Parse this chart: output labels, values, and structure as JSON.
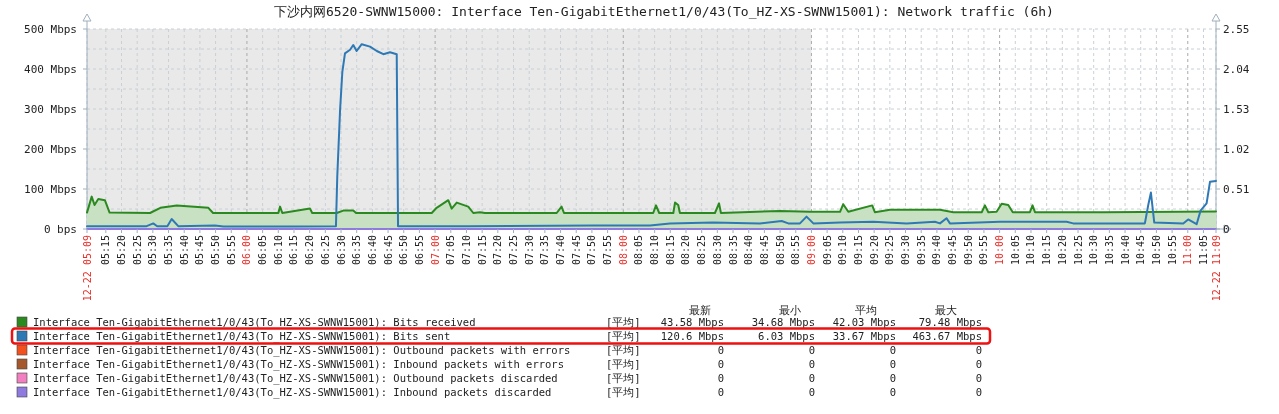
{
  "chart_data": {
    "type": "line",
    "title": "下沙内网6520-SWNW15000: Interface Ten-GigabitEthernet1/0/43(To_HZ-XS-SWNW15001): Network traffic (6h)",
    "xlim": [
      5.15,
      11.15
    ],
    "ylim": [
      0,
      500
    ],
    "y2lim": [
      0,
      2.55
    ],
    "yticks": [
      {
        "value": 0,
        "label": "0 bps"
      },
      {
        "value": 50,
        "label": null
      },
      {
        "value": 100,
        "label": "100 Mbps"
      },
      {
        "value": 150,
        "label": null
      },
      {
        "value": 200,
        "label": "200 Mbps"
      },
      {
        "value": 250,
        "label": null
      },
      {
        "value": 300,
        "label": "300 Mbps"
      },
      {
        "value": 350,
        "label": null
      },
      {
        "value": 400,
        "label": "400 Mbps"
      },
      {
        "value": 450,
        "label": null
      },
      {
        "value": 500,
        "label": "500 Mbps"
      }
    ],
    "y2ticks": [
      0,
      0.51,
      1.02,
      1.53,
      2.04,
      2.55
    ],
    "xticks": [
      {
        "value": 5.15,
        "label": "12-22 05:09"
      },
      {
        "value": 5.25,
        "label": "05:15"
      },
      {
        "value": 5.3333,
        "label": "05:20"
      },
      {
        "value": 5.4167,
        "label": "05:25"
      },
      {
        "value": 5.5,
        "label": "05:30"
      },
      {
        "value": 5.5833,
        "label": "05:35"
      },
      {
        "value": 5.6667,
        "label": "05:40"
      },
      {
        "value": 5.75,
        "label": "05:45"
      },
      {
        "value": 5.8333,
        "label": "05:50"
      },
      {
        "value": 5.9167,
        "label": "05:55"
      },
      {
        "value": 6,
        "label": "06:00"
      },
      {
        "value": 6.0833,
        "label": "06:05"
      },
      {
        "value": 6.1667,
        "label": "06:10"
      },
      {
        "value": 6.25,
        "label": "06:15"
      },
      {
        "value": 6.3333,
        "label": "06:20"
      },
      {
        "value": 6.4167,
        "label": "06:25"
      },
      {
        "value": 6.5,
        "label": "06:30"
      },
      {
        "value": 6.5833,
        "label": "06:35"
      },
      {
        "value": 6.6667,
        "label": "06:40"
      },
      {
        "value": 6.75,
        "label": "06:45"
      },
      {
        "value": 6.8333,
        "label": "06:50"
      },
      {
        "value": 6.9167,
        "label": "06:55"
      },
      {
        "value": 7,
        "label": "07:00"
      },
      {
        "value": 7.0833,
        "label": "07:05"
      },
      {
        "value": 7.1667,
        "label": "07:10"
      },
      {
        "value": 7.25,
        "label": "07:15"
      },
      {
        "value": 7.3333,
        "label": "07:20"
      },
      {
        "value": 7.4167,
        "label": "07:25"
      },
      {
        "value": 7.5,
        "label": "07:30"
      },
      {
        "value": 7.5833,
        "label": "07:35"
      },
      {
        "value": 7.6667,
        "label": "07:40"
      },
      {
        "value": 7.75,
        "label": "07:45"
      },
      {
        "value": 7.8333,
        "label": "07:50"
      },
      {
        "value": 7.9167,
        "label": "07:55"
      },
      {
        "value": 8,
        "label": "08:00"
      },
      {
        "value": 8.0833,
        "label": "08:05"
      },
      {
        "value": 8.1667,
        "label": "08:10"
      },
      {
        "value": 8.25,
        "label": "08:15"
      },
      {
        "value": 8.3333,
        "label": "08:20"
      },
      {
        "value": 8.4167,
        "label": "08:25"
      },
      {
        "value": 8.5,
        "label": "08:30"
      },
      {
        "value": 8.5833,
        "label": "08:35"
      },
      {
        "value": 8.6667,
        "label": "08:40"
      },
      {
        "value": 8.75,
        "label": "08:45"
      },
      {
        "value": 8.8333,
        "label": "08:50"
      },
      {
        "value": 8.9167,
        "label": "08:55"
      },
      {
        "value": 9,
        "label": "09:00"
      },
      {
        "value": 9.0833,
        "label": "09:05"
      },
      {
        "value": 9.1667,
        "label": "09:10"
      },
      {
        "value": 9.25,
        "label": "09:15"
      },
      {
        "value": 9.3333,
        "label": "09:20"
      },
      {
        "value": 9.4167,
        "label": "09:25"
      },
      {
        "value": 9.5,
        "label": "09:30"
      },
      {
        "value": 9.5833,
        "label": "09:35"
      },
      {
        "value": 9.6667,
        "label": "09:40"
      },
      {
        "value": 9.75,
        "label": "09:45"
      },
      {
        "value": 9.8333,
        "label": "09:50"
      },
      {
        "value": 9.9167,
        "label": "09:55"
      },
      {
        "value": 10,
        "label": "10:00"
      },
      {
        "value": 10.0833,
        "label": "10:05"
      },
      {
        "value": 10.1667,
        "label": "10:10"
      },
      {
        "value": 10.25,
        "label": "10:15"
      },
      {
        "value": 10.3333,
        "label": "10:20"
      },
      {
        "value": 10.4167,
        "label": "10:25"
      },
      {
        "value": 10.5,
        "label": "10:30"
      },
      {
        "value": 10.5833,
        "label": "10:35"
      },
      {
        "value": 10.6667,
        "label": "10:40"
      },
      {
        "value": 10.75,
        "label": "10:45"
      },
      {
        "value": 10.8333,
        "label": "10:50"
      },
      {
        "value": 10.9167,
        "label": "10:55"
      },
      {
        "value": 11,
        "label": "11:00"
      },
      {
        "value": 11.0833,
        "label": "11:05"
      },
      {
        "value": 11.15,
        "label": "12-22 11:09"
      }
    ],
    "grid": true,
    "legend": "bottom",
    "bands": [
      {
        "axis": "x",
        "from": 5.15,
        "to": 9,
        "color": "#e9e9e9"
      }
    ],
    "series": [
      {
        "name": "Interface Ten-GigabitEthernet1/0/43(To_HZ-XS-SWNW15001): Bits received",
        "type": "area",
        "color": "#2b8a1f",
        "x": [
          5.15,
          5.175,
          5.19,
          5.21,
          5.245,
          5.27,
          5.485,
          5.54,
          5.627,
          5.795,
          5.82,
          6.167,
          6.176,
          6.188,
          6.335,
          6.347,
          6.477,
          6.512,
          6.565,
          6.58,
          6.982,
          7.008,
          7.07,
          7.088,
          7.115,
          7.176,
          7.203,
          7.238,
          7.265,
          7.646,
          7.672,
          7.685,
          8.159,
          8.174,
          8.191,
          8.266,
          8.275,
          8.292,
          8.301,
          8.487,
          8.509,
          8.519,
          8.833,
          8.992,
          9.152,
          9.169,
          9.196,
          9.323,
          9.337,
          9.417,
          9.683,
          9.754,
          9.905,
          9.922,
          9.94,
          9.984,
          10.011,
          10.046,
          10.07,
          10.161,
          10.175,
          10.188,
          10.551,
          11.15
        ],
        "values": [
          41,
          81,
          60,
          75,
          72,
          41,
          40,
          53,
          59,
          53,
          40,
          40,
          56,
          40,
          51,
          40,
          40,
          46,
          46,
          40,
          40,
          53,
          72,
          51,
          66,
          56,
          40,
          42,
          40,
          40,
          56,
          40,
          40,
          59,
          40,
          40,
          66,
          60,
          40,
          40,
          64,
          40,
          45,
          43,
          43,
          62,
          43,
          59,
          42,
          48,
          48,
          42,
          42,
          59,
          42,
          43,
          63,
          60,
          42,
          42,
          59,
          42,
          42,
          44
        ]
      },
      {
        "name": "Interface Ten-GigabitEthernet1/0/43(To_HZ-XS-SWNW15001): Bits sent",
        "color": "#2e79b5",
        "x": [
          5.15,
          5.467,
          5.502,
          5.523,
          5.577,
          5.6,
          5.635,
          5.83,
          5.875,
          6.264,
          6.473,
          6.48,
          6.495,
          6.507,
          6.521,
          6.548,
          6.565,
          6.583,
          6.61,
          6.654,
          6.69,
          6.725,
          6.76,
          6.796,
          6.803,
          7.175,
          7.84,
          8.142,
          8.248,
          8.478,
          8.726,
          8.842,
          8.877,
          8.939,
          8.974,
          9.01,
          9.152,
          9.329,
          9.506,
          9.656,
          9.683,
          9.718,
          9.736,
          10.002,
          10.356,
          10.391,
          10.772,
          10.79,
          10.804,
          10.822,
          10.976,
          11.002,
          11.047,
          11.068,
          11.1,
          11.118,
          11.15
        ],
        "values": [
          7,
          7,
          14,
          7,
          7,
          25,
          7,
          9,
          6,
          6,
          7,
          131,
          298,
          393,
          439,
          448,
          460,
          445,
          462,
          456,
          445,
          437,
          442,
          437,
          7,
          7,
          9,
          9,
          14,
          16,
          14,
          20,
          14,
          14,
          31,
          14,
          16,
          18,
          14,
          18,
          14,
          27,
          14,
          18,
          18,
          14,
          14,
          60,
          91,
          16,
          14,
          24,
          12,
          46,
          64,
          118,
          120
        ]
      },
      {
        "name": "Interface Ten-GigabitEthernet1/0/43(To_HZ-XS-SWNW15001): Outbound packets with errors",
        "type": "line",
        "color": "#f2501c",
        "values": [
          null,
          null
        ]
      },
      {
        "name": "Interface Ten-GigabitEthernet1/0/43(To_HZ-XS-SWNW15001): Inbound packets with errors",
        "type": "line",
        "color": "#a4582c",
        "values": [
          null,
          null
        ]
      },
      {
        "name": "Interface Ten-GigabitEthernet1/0/43(To_HZ-XS-SWNW15001): Outbound packets discarded",
        "type": "line",
        "color": "#f27fbf",
        "values": [
          null,
          null
        ]
      },
      {
        "name": "Interface Ten-GigabitEthernet1/0/43(To_HZ-XS-SWNW15001): Inbound packets discarded",
        "type": "line",
        "color": "#8f7ae0",
        "x": [
          5.15,
          11.15
        ],
        "values": [
          0,
          0
        ]
      }
    ],
    "annotations": [
      "最新",
      "最小",
      "平均",
      "最大",
      "[平均]",
      "43.58 Mbps",
      "34.68 Mbps",
      "42.03 Mbps",
      "79.48 Mbps",
      "[平均]",
      "120.6 Mbps",
      "6.03 Mbps",
      "33.67 Mbps",
      "463.67 Mbps",
      "[平均]",
      "0",
      "0",
      "0",
      "0",
      "[平均]",
      "0",
      "0",
      "0",
      "0",
      "[平均]",
      "0",
      "0",
      "0",
      "0",
      "[平均]",
      "0",
      "0",
      "0",
      "0"
    ]
  }
}
